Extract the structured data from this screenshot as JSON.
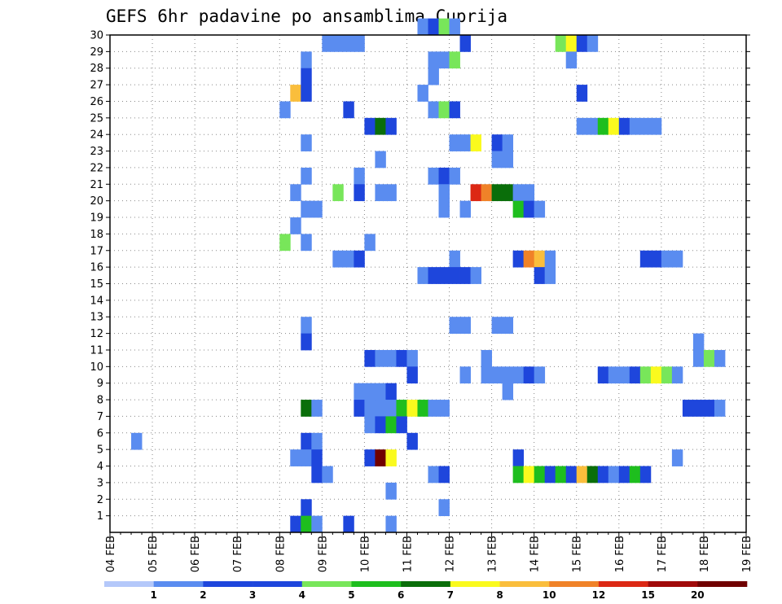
{
  "chart_data": {
    "type": "heatmap",
    "title": "GEFS 6hr padavine po ansamblima Cuprija",
    "x_tick_labels": [
      "04 FEB",
      "05 FEB",
      "06 FEB",
      "07 FEB",
      "08 FEB",
      "09 FEB",
      "10 FEB",
      "11 FEB",
      "12 FEB",
      "13 FEB",
      "14 FEB",
      "15 FEB",
      "16 FEB",
      "17 FEB",
      "18 FEB",
      "19 FEB"
    ],
    "y_tick_labels": [
      "1",
      "2",
      "3",
      "4",
      "5",
      "6",
      "7",
      "8",
      "9",
      "10",
      "11",
      "12",
      "13",
      "14",
      "15",
      "16",
      "17",
      "18",
      "19",
      "20",
      "21",
      "22",
      "23",
      "24",
      "25",
      "26",
      "27",
      "28",
      "29",
      "30"
    ],
    "x_unit": "6-hour step from 04 FEB 00Z",
    "xlim": [
      0,
      60
    ],
    "ylim": [
      0,
      30
    ],
    "grid": true,
    "colorbar": {
      "labels": [
        "1",
        "2",
        "3",
        "4",
        "5",
        "6",
        "7",
        "8",
        "10",
        "12",
        "15",
        "20"
      ],
      "colors": [
        "#b4c8fa",
        "#5a8cf0",
        "#1e46dc",
        "#1e46dc",
        "#78e65a",
        "#1ebe1e",
        "#0a6e0a",
        "#fafa1e",
        "#fabe3c",
        "#f08228",
        "#dc2814",
        "#a00a0a",
        "#700000"
      ]
    },
    "cells": [
      [
        29,
        30,
        1
      ],
      [
        30,
        30,
        3
      ],
      [
        31,
        30,
        4
      ],
      [
        32,
        30,
        1
      ],
      [
        20,
        29,
        1
      ],
      [
        21,
        29,
        1
      ],
      [
        22,
        29,
        1
      ],
      [
        23,
        29,
        1
      ],
      [
        33,
        29,
        3
      ],
      [
        42,
        29,
        4
      ],
      [
        43,
        29,
        7
      ],
      [
        44,
        29,
        2
      ],
      [
        45,
        29,
        1
      ],
      [
        18,
        28,
        1
      ],
      [
        30,
        28,
        1
      ],
      [
        31,
        28,
        1
      ],
      [
        32,
        28,
        4
      ],
      [
        43,
        28,
        1
      ],
      [
        18,
        27,
        2
      ],
      [
        30,
        27,
        1
      ],
      [
        17,
        26,
        8
      ],
      [
        18,
        26,
        2
      ],
      [
        29,
        26,
        1
      ],
      [
        44,
        26,
        2
      ],
      [
        16,
        25,
        1
      ],
      [
        22,
        25,
        2
      ],
      [
        30,
        25,
        1
      ],
      [
        31,
        25,
        4
      ],
      [
        32,
        25,
        2
      ],
      [
        24,
        24,
        2
      ],
      [
        25,
        24,
        6
      ],
      [
        26,
        24,
        3
      ],
      [
        44,
        24,
        1
      ],
      [
        45,
        24,
        1
      ],
      [
        46,
        24,
        5
      ],
      [
        47,
        24,
        7
      ],
      [
        48,
        24,
        3
      ],
      [
        49,
        24,
        1
      ],
      [
        50,
        24,
        1
      ],
      [
        51,
        24,
        1
      ],
      [
        18,
        23,
        1
      ],
      [
        32,
        23,
        1
      ],
      [
        33,
        23,
        1
      ],
      [
        34,
        23,
        7
      ],
      [
        36,
        23,
        2
      ],
      [
        37,
        23,
        1
      ],
      [
        25,
        22,
        1
      ],
      [
        36,
        22,
        1
      ],
      [
        37,
        22,
        1
      ],
      [
        18,
        21,
        1
      ],
      [
        23,
        21,
        1
      ],
      [
        30,
        21,
        1
      ],
      [
        31,
        21,
        2
      ],
      [
        32,
        21,
        1
      ],
      [
        17,
        20,
        1
      ],
      [
        21,
        20,
        4
      ],
      [
        23,
        20,
        2
      ],
      [
        25,
        20,
        1
      ],
      [
        26,
        20,
        1
      ],
      [
        31,
        20,
        1
      ],
      [
        34,
        20,
        10
      ],
      [
        35,
        20,
        9
      ],
      [
        36,
        20,
        6
      ],
      [
        37,
        20,
        6
      ],
      [
        38,
        20,
        1
      ],
      [
        39,
        20,
        1
      ],
      [
        18,
        19,
        1
      ],
      [
        19,
        19,
        1
      ],
      [
        31,
        19,
        1
      ],
      [
        33,
        19,
        1
      ],
      [
        38,
        19,
        5
      ],
      [
        39,
        19,
        3
      ],
      [
        40,
        19,
        1
      ],
      [
        17,
        18,
        1
      ],
      [
        16,
        17,
        4
      ],
      [
        18,
        17,
        1
      ],
      [
        24,
        17,
        1
      ],
      [
        21,
        16,
        1
      ],
      [
        22,
        16,
        1
      ],
      [
        23,
        16,
        2
      ],
      [
        32,
        16,
        1
      ],
      [
        38,
        16,
        2
      ],
      [
        39,
        16,
        9
      ],
      [
        40,
        16,
        8
      ],
      [
        41,
        16,
        1
      ],
      [
        50,
        16,
        3
      ],
      [
        51,
        16,
        3
      ],
      [
        52,
        16,
        1
      ],
      [
        53,
        16,
        1
      ],
      [
        29,
        15,
        1
      ],
      [
        30,
        15,
        2
      ],
      [
        31,
        15,
        2
      ],
      [
        32,
        15,
        2
      ],
      [
        33,
        15,
        2
      ],
      [
        34,
        15,
        1
      ],
      [
        40,
        15,
        2
      ],
      [
        41,
        15,
        1
      ],
      [
        18,
        12,
        1
      ],
      [
        32,
        12,
        1
      ],
      [
        33,
        12,
        1
      ],
      [
        36,
        12,
        1
      ],
      [
        37,
        12,
        1
      ],
      [
        18,
        11,
        2
      ],
      [
        55,
        11,
        1
      ],
      [
        24,
        10,
        2
      ],
      [
        25,
        10,
        1
      ],
      [
        26,
        10,
        1
      ],
      [
        27,
        10,
        2
      ],
      [
        28,
        10,
        1
      ],
      [
        35,
        10,
        1
      ],
      [
        55,
        10,
        1
      ],
      [
        56,
        10,
        4
      ],
      [
        57,
        10,
        1
      ],
      [
        28,
        9,
        3
      ],
      [
        33,
        9,
        1
      ],
      [
        35,
        9,
        1
      ],
      [
        36,
        9,
        1
      ],
      [
        37,
        9,
        1
      ],
      [
        38,
        9,
        1
      ],
      [
        39,
        9,
        2
      ],
      [
        40,
        9,
        1
      ],
      [
        46,
        9,
        2
      ],
      [
        47,
        9,
        1
      ],
      [
        48,
        9,
        1
      ],
      [
        49,
        9,
        2
      ],
      [
        50,
        9,
        4
      ],
      [
        51,
        9,
        7
      ],
      [
        52,
        9,
        4
      ],
      [
        53,
        9,
        1
      ],
      [
        23,
        8,
        1
      ],
      [
        24,
        8,
        1
      ],
      [
        25,
        8,
        1
      ],
      [
        26,
        8,
        2
      ],
      [
        37,
        8,
        1
      ],
      [
        18,
        7,
        6
      ],
      [
        19,
        7,
        1
      ],
      [
        23,
        7,
        2
      ],
      [
        24,
        7,
        1
      ],
      [
        25,
        7,
        1
      ],
      [
        26,
        7,
        1
      ],
      [
        27,
        7,
        5
      ],
      [
        28,
        7,
        7
      ],
      [
        29,
        7,
        5
      ],
      [
        30,
        7,
        1
      ],
      [
        31,
        7,
        1
      ],
      [
        54,
        7,
        2
      ],
      [
        55,
        7,
        2
      ],
      [
        56,
        7,
        2
      ],
      [
        57,
        7,
        1
      ],
      [
        24,
        6,
        1
      ],
      [
        25,
        6,
        2
      ],
      [
        26,
        6,
        5
      ],
      [
        27,
        6,
        3
      ],
      [
        2,
        5,
        1
      ],
      [
        18,
        5,
        3
      ],
      [
        19,
        5,
        1
      ],
      [
        28,
        5,
        2
      ],
      [
        17,
        4,
        1
      ],
      [
        18,
        4,
        1
      ],
      [
        19,
        4,
        2
      ],
      [
        24,
        4,
        2
      ],
      [
        25,
        4,
        12
      ],
      [
        26,
        4,
        7
      ],
      [
        38,
        4,
        2
      ],
      [
        53,
        4,
        1
      ],
      [
        19,
        3,
        3
      ],
      [
        20,
        3,
        1
      ],
      [
        30,
        3,
        1
      ],
      [
        31,
        3,
        2
      ],
      [
        38,
        3,
        5
      ],
      [
        39,
        3,
        7
      ],
      [
        40,
        3,
        5
      ],
      [
        41,
        3,
        2
      ],
      [
        42,
        3,
        5
      ],
      [
        43,
        3,
        2
      ],
      [
        44,
        3,
        8
      ],
      [
        45,
        3,
        6
      ],
      [
        46,
        3,
        3
      ],
      [
        47,
        3,
        1
      ],
      [
        48,
        3,
        2
      ],
      [
        49,
        3,
        5
      ],
      [
        50,
        3,
        2
      ],
      [
        26,
        2,
        1
      ],
      [
        18,
        1,
        2
      ],
      [
        31,
        1,
        1
      ],
      [
        17,
        0,
        3
      ],
      [
        18,
        0,
        5
      ],
      [
        19,
        0,
        1
      ],
      [
        22,
        0,
        2
      ],
      [
        26,
        0,
        1
      ]
    ]
  }
}
